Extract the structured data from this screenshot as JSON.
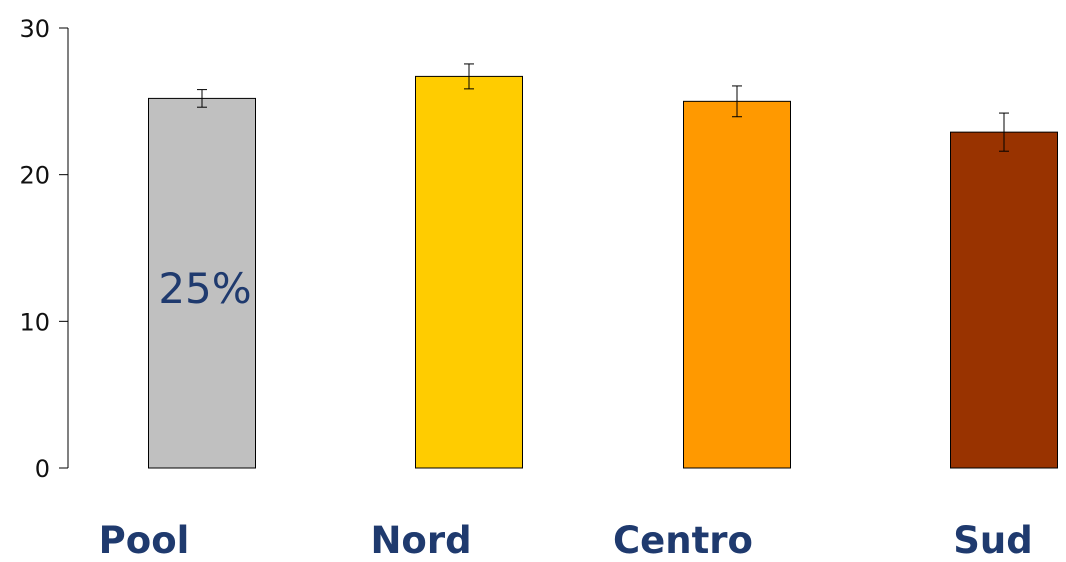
{
  "chart_data": {
    "type": "bar",
    "categories": [
      "Pool",
      "Nord",
      "Centro",
      "Sud"
    ],
    "values": [
      25.2,
      26.7,
      25.0,
      22.9
    ],
    "errors": [
      0.6,
      0.85,
      1.05,
      1.3
    ],
    "colors": [
      "#c0c0c0",
      "#ffcc00",
      "#ff9900",
      "#993300"
    ],
    "ylim": [
      0,
      30
    ],
    "yticks": [
      0,
      10,
      20,
      30
    ],
    "ytick_labels": [
      "0",
      "10",
      "20",
      "30"
    ],
    "annotation": "25%",
    "grid": false
  }
}
